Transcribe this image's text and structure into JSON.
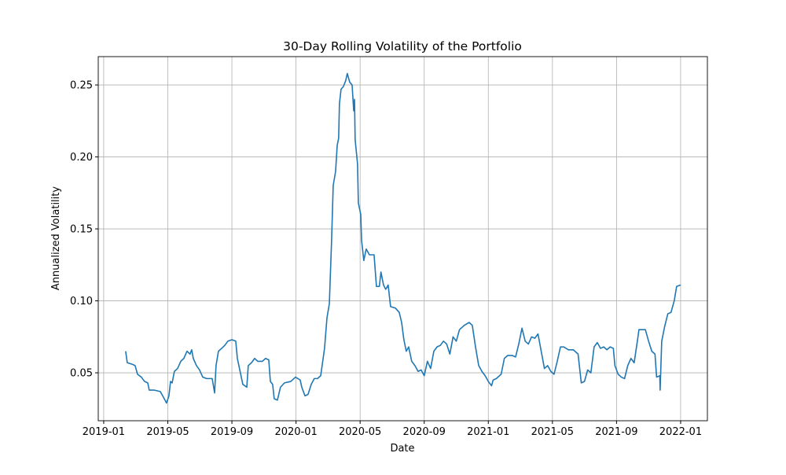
{
  "chart_data": {
    "type": "line",
    "title": "30-Day Rolling Volatility of the Portfolio",
    "x_label": "Date",
    "y_label": "Annualized Volatility",
    "grid": true,
    "xlim": [
      -0.34,
      37.67
    ],
    "xticks": [
      {
        "value": 0,
        "label": "2019-01"
      },
      {
        "value": 4,
        "label": "2019-05"
      },
      {
        "value": 8,
        "label": "2019-09"
      },
      {
        "value": 12,
        "label": "2020-01"
      },
      {
        "value": 16,
        "label": "2020-05"
      },
      {
        "value": 20,
        "label": "2020-09"
      },
      {
        "value": 24,
        "label": "2021-01"
      },
      {
        "value": 28,
        "label": "2021-05"
      },
      {
        "value": 32,
        "label": "2021-09"
      },
      {
        "value": 36,
        "label": "2022-01"
      }
    ],
    "ylim": [
      0.0167,
      0.2697
    ],
    "yticks": [
      0.05,
      {
        "value": 0.1,
        "label": "0.10"
      },
      0.15,
      {
        "value": 0.2,
        "label": "0.20"
      },
      0.25
    ],
    "x": [
      1.37,
      1.47,
      1.77,
      1.96,
      2.11,
      2.35,
      2.55,
      2.75,
      2.84,
      3.14,
      3.53,
      3.73,
      3.92,
      4.07,
      4.17,
      4.27,
      4.41,
      4.61,
      4.81,
      5.0,
      5.2,
      5.39,
      5.49,
      5.59,
      5.79,
      5.98,
      6.18,
      6.42,
      6.77,
      6.92,
      7.01,
      7.16,
      7.36,
      7.55,
      7.75,
      8.0,
      8.24,
      8.34,
      8.53,
      8.68,
      8.93,
      9.02,
      9.22,
      9.42,
      9.61,
      9.9,
      10.1,
      10.3,
      10.4,
      10.54,
      10.64,
      10.84,
      11.03,
      11.28,
      11.67,
      11.97,
      12.26,
      12.36,
      12.56,
      12.75,
      12.95,
      13.14,
      13.34,
      13.54,
      13.63,
      13.78,
      13.93,
      14.08,
      14.22,
      14.32,
      14.47,
      14.57,
      14.66,
      14.71,
      14.81,
      14.96,
      15.1,
      15.2,
      15.35,
      15.5,
      15.6,
      15.65,
      15.69,
      15.84,
      15.89,
      16.04,
      16.09,
      16.23,
      16.38,
      16.58,
      16.87,
      17.02,
      17.2,
      17.3,
      17.46,
      17.6,
      17.75,
      17.9,
      18.2,
      18.44,
      18.59,
      18.73,
      18.88,
      19.03,
      19.22,
      19.42,
      19.62,
      19.81,
      20.0,
      20.2,
      20.4,
      20.6,
      20.8,
      21.0,
      21.2,
      21.4,
      21.6,
      21.8,
      22.0,
      22.2,
      22.5,
      22.8,
      23.0,
      23.2,
      23.4,
      23.6,
      23.8,
      24.0,
      24.2,
      24.3,
      24.5,
      24.8,
      25.0,
      25.2,
      25.5,
      25.7,
      25.9,
      26.1,
      26.3,
      26.5,
      26.7,
      26.9,
      27.1,
      27.3,
      27.5,
      27.7,
      27.9,
      28.1,
      28.3,
      28.5,
      28.7,
      29.0,
      29.3,
      29.6,
      29.8,
      30.0,
      30.2,
      30.4,
      30.6,
      30.8,
      31.0,
      31.2,
      31.4,
      31.6,
      31.8,
      31.9,
      32.1,
      32.3,
      32.5,
      32.7,
      32.9,
      33.1,
      33.3,
      33.4,
      33.6,
      33.8,
      34.0,
      34.2,
      34.4,
      34.5,
      34.7,
      34.72,
      34.82,
      35.0,
      35.2,
      35.4,
      35.6,
      35.75,
      36.0
    ],
    "series": [
      {
        "name": "Volatility",
        "color": "#1f77b4",
        "values": [
          0.065,
          0.057,
          0.056,
          0.055,
          0.049,
          0.047,
          0.044,
          0.043,
          0.038,
          0.038,
          0.037,
          0.033,
          0.029,
          0.034,
          0.044,
          0.043,
          0.051,
          0.053,
          0.058,
          0.06,
          0.065,
          0.063,
          0.066,
          0.06,
          0.055,
          0.052,
          0.047,
          0.046,
          0.046,
          0.036,
          0.055,
          0.065,
          0.067,
          0.069,
          0.072,
          0.073,
          0.072,
          0.06,
          0.05,
          0.042,
          0.04,
          0.055,
          0.057,
          0.06,
          0.058,
          0.058,
          0.06,
          0.059,
          0.044,
          0.042,
          0.032,
          0.031,
          0.04,
          0.043,
          0.044,
          0.047,
          0.045,
          0.04,
          0.034,
          0.035,
          0.042,
          0.046,
          0.046,
          0.048,
          0.055,
          0.067,
          0.088,
          0.098,
          0.142,
          0.18,
          0.19,
          0.208,
          0.213,
          0.237,
          0.247,
          0.249,
          0.253,
          0.258,
          0.252,
          0.25,
          0.232,
          0.24,
          0.212,
          0.195,
          0.168,
          0.16,
          0.142,
          0.128,
          0.136,
          0.132,
          0.132,
          0.11,
          0.11,
          0.12,
          0.111,
          0.108,
          0.111,
          0.096,
          0.095,
          0.092,
          0.085,
          0.073,
          0.065,
          0.068,
          0.058,
          0.055,
          0.051,
          0.052,
          0.048,
          0.058,
          0.053,
          0.065,
          0.068,
          0.069,
          0.072,
          0.07,
          0.063,
          0.075,
          0.072,
          0.08,
          0.083,
          0.085,
          0.083,
          0.068,
          0.055,
          0.051,
          0.048,
          0.044,
          0.041,
          0.045,
          0.046,
          0.049,
          0.06,
          0.062,
          0.062,
          0.061,
          0.07,
          0.081,
          0.072,
          0.07,
          0.075,
          0.074,
          0.077,
          0.065,
          0.053,
          0.055,
          0.051,
          0.049,
          0.058,
          0.068,
          0.068,
          0.066,
          0.066,
          0.063,
          0.043,
          0.044,
          0.052,
          0.05,
          0.068,
          0.071,
          0.067,
          0.068,
          0.066,
          0.068,
          0.067,
          0.055,
          0.049,
          0.047,
          0.046,
          0.055,
          0.06,
          0.057,
          0.072,
          0.08,
          0.08,
          0.08,
          0.072,
          0.065,
          0.063,
          0.047,
          0.048,
          0.038,
          0.072,
          0.082,
          0.091,
          0.092,
          0.1,
          0.11,
          0.111
        ]
      }
    ]
  }
}
